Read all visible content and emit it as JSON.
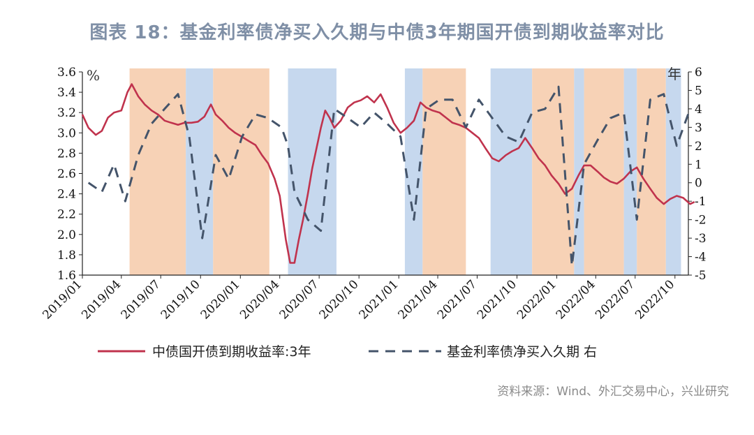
{
  "title": "图表 18：基金利率债净买入久期与中债3年期国开债到期收益率对比",
  "source": "资料来源：Wind、外汇交易中心，兴业研究",
  "chart_data": {
    "type": "line",
    "left_unit": "%",
    "right_unit": "年",
    "y_left": {
      "min": 1.6,
      "max": 3.6,
      "step": 0.2,
      "ticks": [
        "1.6",
        "1.8",
        "2.0",
        "2.2",
        "2.4",
        "2.6",
        "2.8",
        "3.0",
        "3.2",
        "3.4",
        "3.6"
      ]
    },
    "y_right": {
      "min": -5,
      "max": 6,
      "step": 1,
      "ticks": [
        "-5",
        "-4",
        "-3",
        "-2",
        "-1",
        "0",
        "1",
        "2",
        "3",
        "4",
        "5",
        "6"
      ]
    },
    "x_range": [
      "2019-01",
      "2022-11"
    ],
    "x_ticks": [
      "2019/01",
      "2019/04",
      "2019/07",
      "2019/10",
      "2020/01",
      "2020/04",
      "2020/07",
      "2020/10",
      "2021/01",
      "2021/04",
      "2021/07",
      "2021/10",
      "2022/01",
      "2022/04",
      "2022/07",
      "2022/10"
    ],
    "grid": false,
    "legend_position": "bottom",
    "colors": {
      "yield": "#c0334d",
      "duration": "#44546a",
      "orange_band": "#f7d2b6",
      "blue_band": "#c6d8ee"
    },
    "bands": [
      {
        "start": "2019-04-20",
        "end": "2019-08-28",
        "color": "orange"
      },
      {
        "start": "2019-08-28",
        "end": "2019-10-30",
        "color": "blue"
      },
      {
        "start": "2019-10-30",
        "end": "2020-03-08",
        "color": "orange"
      },
      {
        "start": "2020-04-20",
        "end": "2020-08-10",
        "color": "blue"
      },
      {
        "start": "2021-01-15",
        "end": "2021-02-25",
        "color": "blue"
      },
      {
        "start": "2021-02-25",
        "end": "2021-06-05",
        "color": "orange"
      },
      {
        "start": "2021-08-01",
        "end": "2021-11-05",
        "color": "blue"
      },
      {
        "start": "2021-11-05",
        "end": "2022-02-10",
        "color": "orange"
      },
      {
        "start": "2022-02-10",
        "end": "2022-03-05",
        "color": "blue"
      },
      {
        "start": "2022-03-05",
        "end": "2022-06-05",
        "color": "orange"
      },
      {
        "start": "2022-06-05",
        "end": "2022-07-05",
        "color": "blue"
      },
      {
        "start": "2022-07-05",
        "end": "2022-09-10",
        "color": "orange"
      },
      {
        "start": "2022-09-10",
        "end": "2022-10-15",
        "color": "blue"
      }
    ],
    "series": [
      {
        "name": "中债国开债到期收益率:3年",
        "axis": "left",
        "style": "solid",
        "x": [
          "2019-01-01",
          "2019-01-15",
          "2019-02-01",
          "2019-02-15",
          "2019-03-01",
          "2019-03-15",
          "2019-04-01",
          "2019-04-15",
          "2019-04-25",
          "2019-05-10",
          "2019-05-25",
          "2019-06-10",
          "2019-06-25",
          "2019-07-10",
          "2019-07-25",
          "2019-08-10",
          "2019-08-25",
          "2019-09-10",
          "2019-09-25",
          "2019-10-10",
          "2019-10-25",
          "2019-11-05",
          "2019-11-20",
          "2019-12-05",
          "2019-12-20",
          "2020-01-05",
          "2020-01-20",
          "2020-02-05",
          "2020-02-20",
          "2020-03-05",
          "2020-03-20",
          "2020-04-01",
          "2020-04-15",
          "2020-04-25",
          "2020-05-05",
          "2020-05-15",
          "2020-05-25",
          "2020-06-05",
          "2020-06-15",
          "2020-06-25",
          "2020-07-05",
          "2020-07-15",
          "2020-07-25",
          "2020-08-05",
          "2020-08-20",
          "2020-09-05",
          "2020-09-20",
          "2020-10-05",
          "2020-10-20",
          "2020-11-05",
          "2020-11-20",
          "2020-12-05",
          "2020-12-20",
          "2021-01-05",
          "2021-01-20",
          "2021-02-05",
          "2021-02-20",
          "2021-03-05",
          "2021-03-20",
          "2021-04-05",
          "2021-04-20",
          "2021-05-05",
          "2021-05-20",
          "2021-06-05",
          "2021-06-20",
          "2021-07-05",
          "2021-07-20",
          "2021-08-05",
          "2021-08-20",
          "2021-09-05",
          "2021-09-20",
          "2021-10-05",
          "2021-10-20",
          "2021-11-05",
          "2021-11-20",
          "2021-12-05",
          "2021-12-20",
          "2022-01-05",
          "2022-01-20",
          "2022-02-05",
          "2022-02-20",
          "2022-03-05",
          "2022-03-20",
          "2022-04-05",
          "2022-04-20",
          "2022-05-05",
          "2022-05-20",
          "2022-06-05",
          "2022-06-20",
          "2022-07-05",
          "2022-07-20",
          "2022-08-05",
          "2022-08-20",
          "2022-09-05",
          "2022-09-20",
          "2022-10-05",
          "2022-10-20",
          "2022-11-05",
          "2022-11-15"
        ],
        "y": [
          3.18,
          3.05,
          2.98,
          3.02,
          3.15,
          3.2,
          3.22,
          3.4,
          3.48,
          3.36,
          3.28,
          3.22,
          3.18,
          3.12,
          3.1,
          3.08,
          3.1,
          3.1,
          3.11,
          3.16,
          3.28,
          3.18,
          3.12,
          3.05,
          3.0,
          2.96,
          2.92,
          2.88,
          2.78,
          2.7,
          2.55,
          2.38,
          1.95,
          1.72,
          1.72,
          1.95,
          2.15,
          2.4,
          2.65,
          2.85,
          3.05,
          3.22,
          3.15,
          3.05,
          3.12,
          3.25,
          3.3,
          3.32,
          3.36,
          3.3,
          3.38,
          3.25,
          3.1,
          3.0,
          3.05,
          3.12,
          3.3,
          3.25,
          3.22,
          3.2,
          3.15,
          3.1,
          3.08,
          3.05,
          3.0,
          2.95,
          2.85,
          2.75,
          2.72,
          2.78,
          2.82,
          2.85,
          2.95,
          2.85,
          2.75,
          2.68,
          2.58,
          2.5,
          2.4,
          2.45,
          2.58,
          2.68,
          2.68,
          2.62,
          2.56,
          2.52,
          2.5,
          2.55,
          2.62,
          2.66,
          2.55,
          2.45,
          2.36,
          2.3,
          2.35,
          2.38,
          2.36,
          2.3,
          2.32
        ]
      },
      {
        "name": "基金利率债净买入久期 右",
        "axis": "right",
        "style": "dashed",
        "x": [
          "2019-01-15",
          "2019-02-15",
          "2019-03-15",
          "2019-04-10",
          "2019-05-10",
          "2019-06-10",
          "2019-07-10",
          "2019-08-10",
          "2019-09-05",
          "2019-10-05",
          "2019-11-05",
          "2019-12-05",
          "2020-01-05",
          "2020-02-05",
          "2020-03-05",
          "2020-04-05",
          "2020-04-20",
          "2020-05-05",
          "2020-06-05",
          "2020-07-05",
          "2020-08-05",
          "2020-09-05",
          "2020-10-05",
          "2020-11-05",
          "2020-12-05",
          "2021-01-05",
          "2021-02-05",
          "2021-03-05",
          "2021-04-05",
          "2021-05-05",
          "2021-06-05",
          "2021-07-05",
          "2021-08-05",
          "2021-09-05",
          "2021-10-05",
          "2021-11-05",
          "2021-12-05",
          "2022-01-05",
          "2022-02-05",
          "2022-03-05",
          "2022-04-05",
          "2022-05-05",
          "2022-06-05",
          "2022-07-05",
          "2022-08-05",
          "2022-09-05",
          "2022-10-05",
          "2022-11-05"
        ],
        "y": [
          0.0,
          -0.5,
          1.0,
          -1.0,
          1.5,
          3.2,
          4.0,
          4.8,
          2.5,
          -3.0,
          1.5,
          0.2,
          2.5,
          3.7,
          3.5,
          3.0,
          2.0,
          -0.5,
          -2.0,
          -2.6,
          4.0,
          3.5,
          3.0,
          3.8,
          3.2,
          2.5,
          -2.0,
          4.0,
          4.5,
          4.5,
          3.0,
          4.5,
          3.5,
          2.5,
          2.2,
          3.8,
          4.0,
          5.2,
          -4.5,
          1.0,
          2.3,
          3.5,
          3.8,
          -2.0,
          4.5,
          4.8,
          2.0,
          4.0
        ]
      }
    ]
  }
}
